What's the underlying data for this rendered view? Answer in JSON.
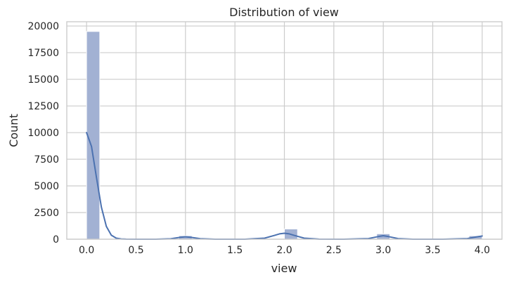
{
  "chart_data": {
    "type": "bar",
    "title": "Distribution of view",
    "xlabel": "view",
    "ylabel": "Count",
    "xlim": [
      -0.2,
      4.2
    ],
    "ylim": [
      0,
      20400
    ],
    "x_ticks": [
      "0.0",
      "0.5",
      "1.0",
      "1.5",
      "2.0",
      "2.5",
      "3.0",
      "3.5",
      "4.0"
    ],
    "y_ticks": [
      "0",
      "2500",
      "5000",
      "7500",
      "10000",
      "12500",
      "15000",
      "17500",
      "20000"
    ],
    "grid": true,
    "bin_width": 0.1333,
    "bins": [
      {
        "x_start": 0.0,
        "x_end": 0.1333,
        "count": 19490
      },
      {
        "x_start": 0.9333,
        "x_end": 1.0667,
        "count": 330
      },
      {
        "x_start": 2.0,
        "x_end": 2.1333,
        "count": 960
      },
      {
        "x_start": 2.9333,
        "x_end": 3.0667,
        "count": 510
      },
      {
        "x_start": 3.8667,
        "x_end": 4.0,
        "count": 320
      }
    ],
    "kde": {
      "x": [
        0.0,
        0.05,
        0.1,
        0.15,
        0.2,
        0.25,
        0.3,
        0.35,
        0.4,
        0.5,
        0.7,
        0.85,
        0.95,
        1.0,
        1.05,
        1.15,
        1.3,
        1.6,
        1.8,
        1.9,
        1.95,
        2.0,
        2.05,
        2.1,
        2.2,
        2.35,
        2.6,
        2.85,
        2.95,
        3.0,
        3.05,
        3.15,
        3.3,
        3.6,
        3.85,
        3.95,
        4.0
      ],
      "y": [
        10000,
        8700,
        5800,
        3000,
        1200,
        380,
        100,
        25,
        5,
        0,
        0,
        40,
        180,
        230,
        180,
        50,
        0,
        0,
        100,
        360,
        500,
        560,
        500,
        360,
        100,
        5,
        0,
        60,
        250,
        330,
        250,
        60,
        0,
        0,
        60,
        230,
        300
      ]
    },
    "colors": {
      "bar_fill": "#a2b1d3",
      "bar_edge": "#ffffff",
      "kde_line": "#4c72b0",
      "grid": "#cccccc",
      "frame": "#cccccc"
    }
  }
}
